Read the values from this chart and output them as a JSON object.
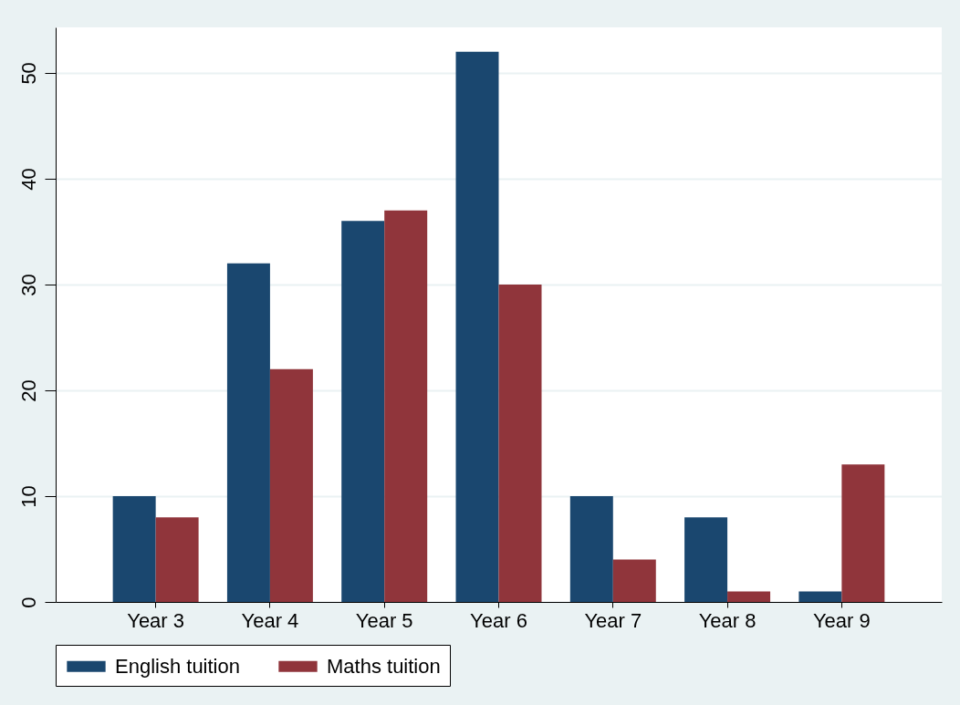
{
  "chart_data": {
    "type": "bar",
    "categories": [
      "Year 3",
      "Year 4",
      "Year 5",
      "Year 6",
      "Year 7",
      "Year 8",
      "Year 9"
    ],
    "series": [
      {
        "name": "English tuition",
        "color": "#1a476f",
        "values": [
          10,
          32,
          36,
          52,
          10,
          8,
          1
        ]
      },
      {
        "name": "Maths tuition",
        "color": "#90353b",
        "values": [
          8,
          22,
          37,
          30,
          4,
          1,
          13
        ]
      }
    ],
    "ylim": [
      0,
      54.3
    ],
    "yticks": [
      0,
      10,
      20,
      30,
      40,
      50
    ],
    "grid": "y",
    "legend": "bottom"
  }
}
